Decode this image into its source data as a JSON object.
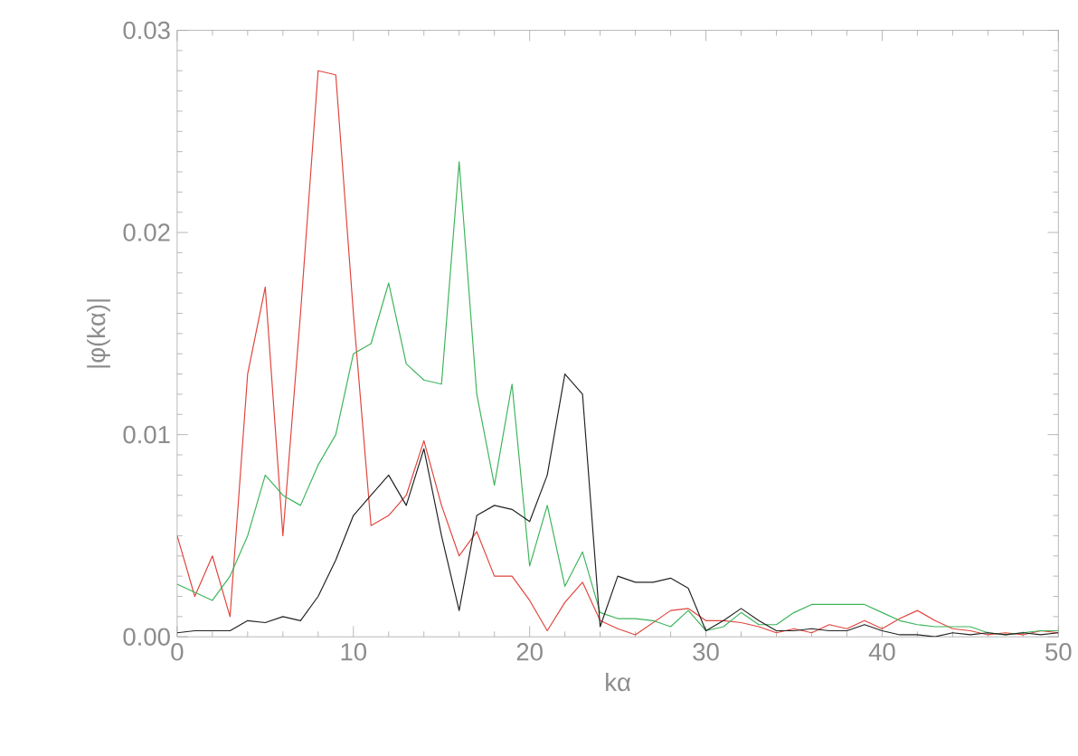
{
  "chart_data": {
    "type": "line",
    "xlabel": "kα",
    "ylabel": "|φ(kα)|",
    "xlim": [
      0,
      50
    ],
    "ylim": [
      0,
      0.03
    ],
    "xticks": [
      0,
      10,
      20,
      30,
      40,
      50
    ],
    "yticks": [
      {
        "value": 0,
        "label": "0.00"
      },
      {
        "value": 0.01,
        "label": "0.01"
      },
      {
        "value": 0.02,
        "label": "0.02"
      },
      {
        "value": 0.03,
        "label": "0.03"
      }
    ],
    "marker": "none",
    "line_style": "solid",
    "x": [
      0,
      1,
      2,
      3,
      4,
      5,
      6,
      7,
      8,
      9,
      10,
      11,
      12,
      13,
      14,
      15,
      16,
      17,
      18,
      19,
      20,
      21,
      22,
      23,
      24,
      25,
      26,
      27,
      28,
      29,
      30,
      31,
      32,
      33,
      34,
      35,
      36,
      37,
      38,
      39,
      40,
      41,
      42,
      43,
      44,
      45,
      46,
      47,
      48,
      49,
      50
    ],
    "series": [
      {
        "color": "#e0443c",
        "values": [
          0.005,
          0.002,
          0.004,
          0.001,
          0.013,
          0.0173,
          0.005,
          0.016,
          0.028,
          0.0278,
          0.016,
          0.0055,
          0.006,
          0.007,
          0.0097,
          0.0065,
          0.004,
          0.0052,
          0.003,
          0.003,
          0.0018,
          0.0003,
          0.0017,
          0.0027,
          0.0008,
          0.0004,
          0.0001,
          0.0007,
          0.0013,
          0.0014,
          0.0008,
          0.0008,
          0.0007,
          0.0005,
          0.0002,
          0.0004,
          0.0002,
          0.0006,
          0.0004,
          0.0008,
          0.0004,
          0.0009,
          0.0013,
          0.0008,
          0.0004,
          0.0003,
          0.0001,
          0.0002,
          0.0001,
          0.0003,
          0.0002
        ]
      },
      {
        "color": "#3cb45a",
        "values": [
          0.0026,
          0.0022,
          0.0018,
          0.003,
          0.005,
          0.008,
          0.007,
          0.0065,
          0.0085,
          0.01,
          0.014,
          0.0145,
          0.0175,
          0.0135,
          0.0127,
          0.0125,
          0.0235,
          0.012,
          0.0075,
          0.0125,
          0.0035,
          0.0065,
          0.0025,
          0.0042,
          0.0012,
          0.0009,
          0.0009,
          0.0008,
          0.0005,
          0.0013,
          0.0003,
          0.0005,
          0.0012,
          0.0006,
          0.0006,
          0.0012,
          0.0016,
          0.0016,
          0.0016,
          0.0016,
          0.0012,
          0.0008,
          0.0006,
          0.0005,
          0.0005,
          0.0005,
          0.0002,
          0.0001,
          0.0002,
          0.0003,
          0.0003
        ]
      },
      {
        "color": "#222222",
        "values": [
          0.0002,
          0.0003,
          0.0003,
          0.0003,
          0.0008,
          0.0007,
          0.001,
          0.0008,
          0.002,
          0.0038,
          0.006,
          0.007,
          0.008,
          0.0065,
          0.0093,
          0.005,
          0.0013,
          0.006,
          0.0065,
          0.0063,
          0.0057,
          0.008,
          0.013,
          0.012,
          0.0005,
          0.003,
          0.0027,
          0.0027,
          0.0029,
          0.0024,
          0.0003,
          0.0008,
          0.0014,
          0.0008,
          0.0003,
          0.0003,
          0.0004,
          0.0003,
          0.0003,
          0.0006,
          0.0003,
          0.0001,
          0.0001,
          0.0,
          0.0002,
          0.0001,
          0.0002,
          0.0001,
          0.0002,
          0.0001,
          0.0002
        ]
      }
    ]
  }
}
